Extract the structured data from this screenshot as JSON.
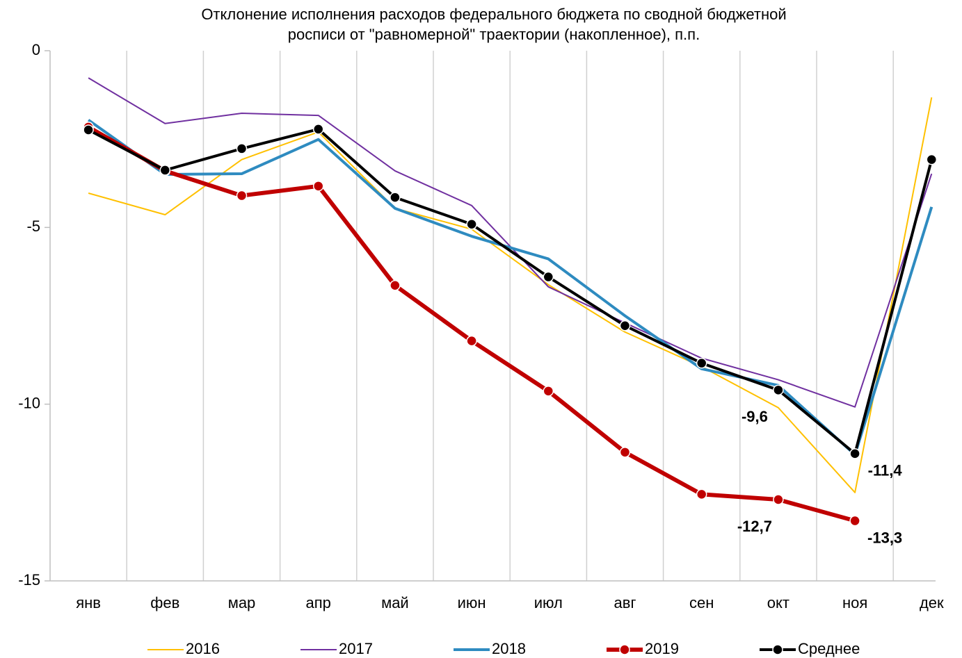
{
  "chart_data": {
    "type": "line",
    "title": [
      "Отклонение исполнения расходов федерального бюджета по сводной бюджетной",
      "росписи от \"равномерной\" траектории  (накопленное), п.п."
    ],
    "categories": [
      "янв",
      "фев",
      "мар",
      "апр",
      "май",
      "июн",
      "июл",
      "авг",
      "сен",
      "окт",
      "ноя",
      "дек"
    ],
    "series": [
      {
        "name": "2016",
        "color": "#ffc000",
        "width": 2,
        "marker": false,
        "values": [
          -4.03,
          -4.64,
          -3.08,
          -2.3,
          -4.46,
          -5.05,
          -6.62,
          -7.96,
          -8.94,
          -10.1,
          -12.5,
          -1.32
        ]
      },
      {
        "name": "2017",
        "color": "#7030a0",
        "width": 2,
        "marker": false,
        "values": [
          -0.77,
          -2.06,
          -1.77,
          -1.83,
          -3.4,
          -4.38,
          -6.68,
          -7.7,
          -8.7,
          -9.31,
          -10.08,
          -3.48
        ]
      },
      {
        "name": "2018",
        "color": "#2e8bc0",
        "width": 4,
        "marker": false,
        "values": [
          -1.96,
          -3.5,
          -3.48,
          -2.51,
          -4.46,
          -5.25,
          -5.89,
          -7.5,
          -9.0,
          -9.47,
          -11.43,
          -4.42
        ]
      },
      {
        "name": "2019",
        "color": "#c00000",
        "width": 6,
        "marker": true,
        "values": [
          -2.16,
          -3.4,
          -4.1,
          -3.83,
          -6.64,
          -8.21,
          -9.63,
          -11.36,
          -12.55,
          -12.7,
          -13.3,
          null
        ],
        "value_labels": [
          null,
          null,
          null,
          null,
          null,
          null,
          null,
          null,
          null,
          "-12,7",
          "-13,3",
          null
        ]
      },
      {
        "name": "Среднее",
        "color": "#000000",
        "width": 4,
        "marker": true,
        "values": [
          -2.24,
          -3.38,
          -2.77,
          -2.22,
          -4.15,
          -4.91,
          -6.4,
          -7.78,
          -8.84,
          -9.6,
          -11.4,
          -3.08
        ],
        "value_labels": [
          null,
          null,
          null,
          null,
          null,
          null,
          null,
          null,
          null,
          "-9,6",
          "-11,4",
          null
        ]
      }
    ],
    "ylim": [
      -15,
      0
    ],
    "yticks": [
      0,
      -5,
      -10,
      -15
    ],
    "grid": "x",
    "legend": "bottom"
  }
}
